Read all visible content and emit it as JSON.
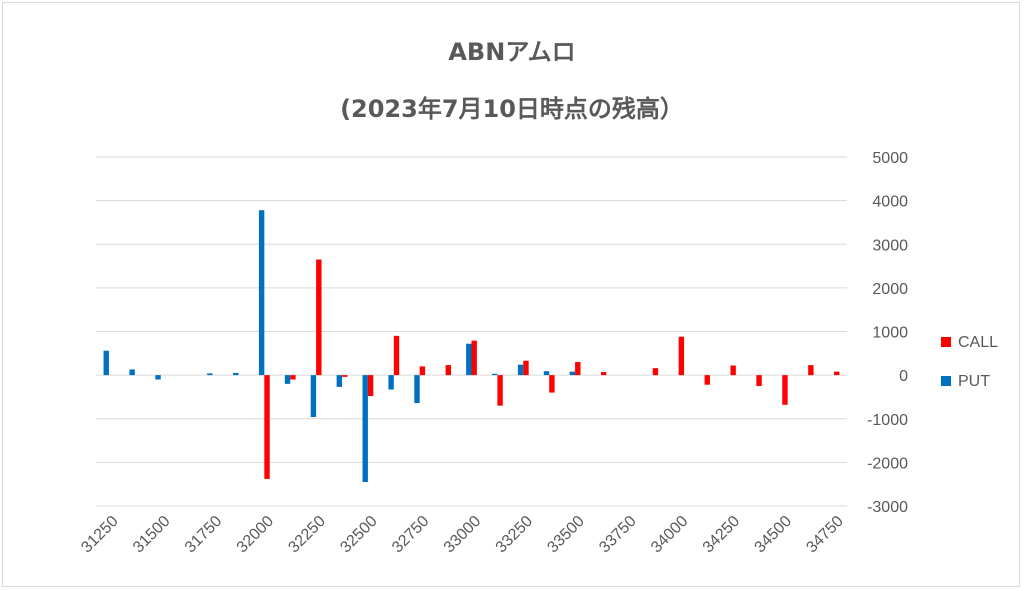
{
  "chart_data": {
    "type": "bar",
    "title": "ABNアムロ",
    "subtitle": "(2023年7月10日時点の残高）",
    "ylim": [
      -3000,
      5000
    ],
    "y_ticks": [
      5000,
      4000,
      3000,
      2000,
      1000,
      0,
      -1000,
      -2000,
      -3000
    ],
    "x_tick_labels": [
      "31250",
      "31500",
      "31750",
      "32000",
      "32250",
      "32500",
      "32750",
      "33000",
      "33250",
      "33500",
      "33750",
      "34000",
      "34250",
      "34500",
      "34750"
    ],
    "categories": [
      31250,
      31375,
      31500,
      31625,
      31750,
      31875,
      32000,
      32125,
      32250,
      32375,
      32500,
      32625,
      32750,
      32875,
      33000,
      33125,
      33250,
      33375,
      33500,
      33625,
      33750,
      33875,
      34000,
      34125,
      34250,
      34375,
      34500,
      34625,
      34750
    ],
    "legend_position": "right",
    "grid": true,
    "series": [
      {
        "name": "CALL",
        "color": "#ff0000",
        "values": [
          0,
          0,
          0,
          0,
          0,
          0,
          -2380,
          -100,
          2650,
          -40,
          -480,
          900,
          200,
          230,
          790,
          -700,
          330,
          -400,
          300,
          70,
          0,
          160,
          880,
          -220,
          220,
          -250,
          -680,
          230,
          80
        ]
      },
      {
        "name": "PUT",
        "color": "#0070c0",
        "values": [
          560,
          130,
          -100,
          0,
          40,
          50,
          3780,
          -200,
          -960,
          -270,
          -2450,
          -330,
          -640,
          0,
          720,
          30,
          240,
          90,
          80,
          0,
          0,
          0,
          0,
          0,
          0,
          0,
          0,
          0,
          0
        ]
      }
    ]
  }
}
